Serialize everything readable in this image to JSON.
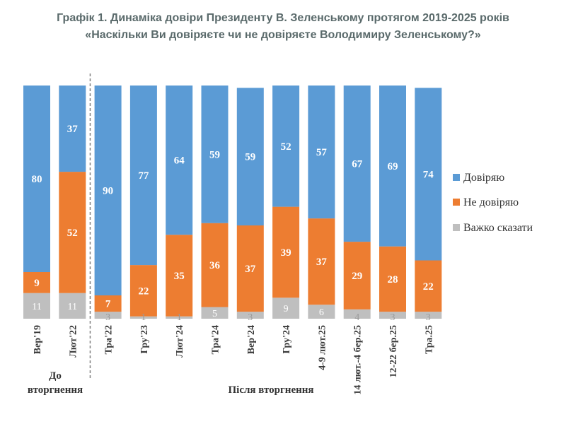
{
  "title_line1": "Графік 1. Динаміка довіри Президенту В. Зеленському протягом 2019-2025 років",
  "title_line2": "«Наскільки Ви довіряєте чи не довіряєте Володимиру Зеленському?»",
  "colors": {
    "trust": "#5b9bd5",
    "distrust": "#ed7d31",
    "hard_to_say": "#bfbfbf",
    "divider": "#7f7f7f"
  },
  "group_labels": {
    "before": "До вторгнення",
    "before_line1": "До",
    "before_line2": "вторгнення",
    "after": "Після вторгнення"
  },
  "chart_data": {
    "type": "bar",
    "stacked": true,
    "percent": true,
    "categories": [
      "Вер'19",
      "Лют'22",
      "Тра'22",
      "Гру'23",
      "Лют'24",
      "Тра'24",
      "Вер'24",
      "Гру'24",
      "4-9 лют.25",
      "14 лют.-4 бер.25",
      "12-22 бер.25",
      "Тра.25"
    ],
    "series": [
      {
        "name": "Довіряю",
        "values": [
          80,
          37,
          90,
          77,
          64,
          59,
          59,
          52,
          57,
          67,
          69,
          74
        ]
      },
      {
        "name": "Не довіряю",
        "values": [
          9,
          52,
          7,
          22,
          35,
          36,
          37,
          39,
          37,
          29,
          28,
          22
        ]
      },
      {
        "name": "Важко сказати",
        "values": [
          11,
          11,
          3,
          1,
          1,
          5,
          3,
          9,
          6,
          4,
          3,
          3
        ]
      }
    ],
    "legend_position": "right",
    "grid": false,
    "divider_after_index": 1
  }
}
